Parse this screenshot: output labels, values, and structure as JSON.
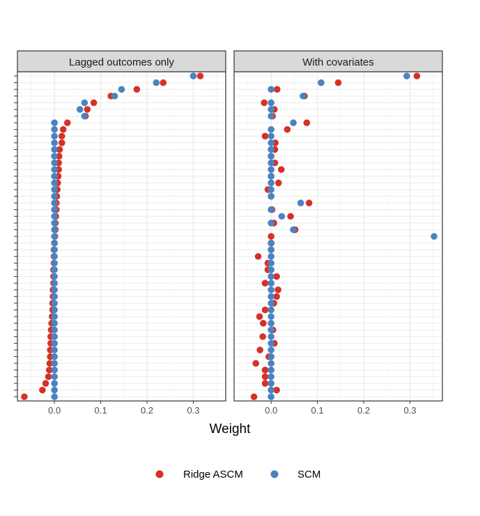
{
  "chart_data": {
    "type": "scatter",
    "xlabel": "Weight",
    "ylabel": "",
    "xlim": [
      -0.08,
      0.37
    ],
    "x_ticks": [
      0.0,
      0.1,
      0.2,
      0.3
    ],
    "x_tick_labels": [
      "0.0",
      "0.1",
      "0.2",
      "0.3"
    ],
    "n_units": 49,
    "grid": true,
    "legend_position": "bottom",
    "colors": {
      "Ridge ASCM": "#d73027",
      "SCM": "#4a83c0"
    },
    "legend": [
      {
        "label": "Ridge ASCM",
        "color": "#d73027"
      },
      {
        "label": "SCM",
        "color": "#4a83c0"
      }
    ],
    "panels": [
      {
        "title": "Lagged outcomes only",
        "series": [
          {
            "name": "Ridge ASCM",
            "values": [
              0.315,
              0.235,
              0.178,
              0.122,
              0.085,
              0.071,
              0.067,
              0.028,
              0.019,
              0.016,
              0.016,
              0.011,
              0.01,
              0.009,
              0.009,
              0.008,
              0.007,
              0.006,
              0.005,
              0.004,
              0.004,
              0.003,
              0.002,
              0.002,
              0.001,
              0.0,
              -0.001,
              -0.001,
              -0.001,
              -0.002,
              -0.002,
              -0.002,
              -0.003,
              -0.003,
              -0.004,
              -0.004,
              -0.005,
              -0.006,
              -0.007,
              -0.008,
              -0.008,
              -0.009,
              -0.009,
              -0.01,
              -0.011,
              -0.013,
              -0.019,
              -0.026,
              -0.065
            ]
          },
          {
            "name": "SCM",
            "values": [
              0.3,
              0.22,
              0.145,
              0.13,
              0.065,
              0.055,
              0.065,
              0.0,
              0.0,
              0.0,
              0.0,
              0.0,
              0.0,
              0.0,
              0.0,
              0.0,
              0.0,
              0.0,
              0.0,
              0.0,
              0.0,
              0.0,
              0.0,
              0.0,
              0.0,
              0.0,
              0.0,
              0.0,
              0.0,
              0.0,
              0.0,
              0.0,
              0.0,
              0.0,
              0.0,
              0.0,
              0.0,
              0.0,
              0.0,
              0.0,
              0.0,
              0.0,
              0.0,
              0.0,
              0.0,
              0.0,
              0.0,
              0.0,
              0.0
            ]
          }
        ]
      },
      {
        "title": "With covariates",
        "series": [
          {
            "name": "Ridge ASCM",
            "values": [
              0.315,
              0.145,
              0.013,
              0.072,
              -0.015,
              0.007,
              0.003,
              0.077,
              0.035,
              -0.013,
              0.009,
              0.008,
              0.0,
              0.008,
              0.022,
              0.0,
              0.016,
              -0.007,
              0.0,
              0.082,
              0.002,
              0.042,
              0.006,
              0.052,
              0.0,
              0.0,
              0.0,
              -0.028,
              -0.007,
              -0.007,
              0.012,
              -0.013,
              0.015,
              0.012,
              0.006,
              -0.013,
              -0.025,
              -0.017,
              0.004,
              -0.018,
              0.007,
              -0.024,
              -0.005,
              -0.033,
              -0.013,
              -0.013,
              -0.013,
              0.012,
              -0.037
            ]
          },
          {
            "name": "SCM",
            "values": [
              0.293,
              0.108,
              0.0,
              0.069,
              0.0,
              0.0,
              0.0,
              0.048,
              0.0,
              0.0,
              0.0,
              0.0,
              0.0,
              0.0,
              0.0,
              0.0,
              0.0,
              0.0,
              0.0,
              0.064,
              0.0,
              0.023,
              0.0,
              0.048,
              0.352,
              0.0,
              0.0,
              0.0,
              0.0,
              0.0,
              0.0,
              0.0,
              0.0,
              0.0,
              0.0,
              0.0,
              0.0,
              0.0,
              0.0,
              0.0,
              0.0,
              0.0,
              0.0,
              0.0,
              0.0,
              0.0,
              0.0,
              0.0,
              0.0
            ]
          }
        ]
      }
    ]
  }
}
